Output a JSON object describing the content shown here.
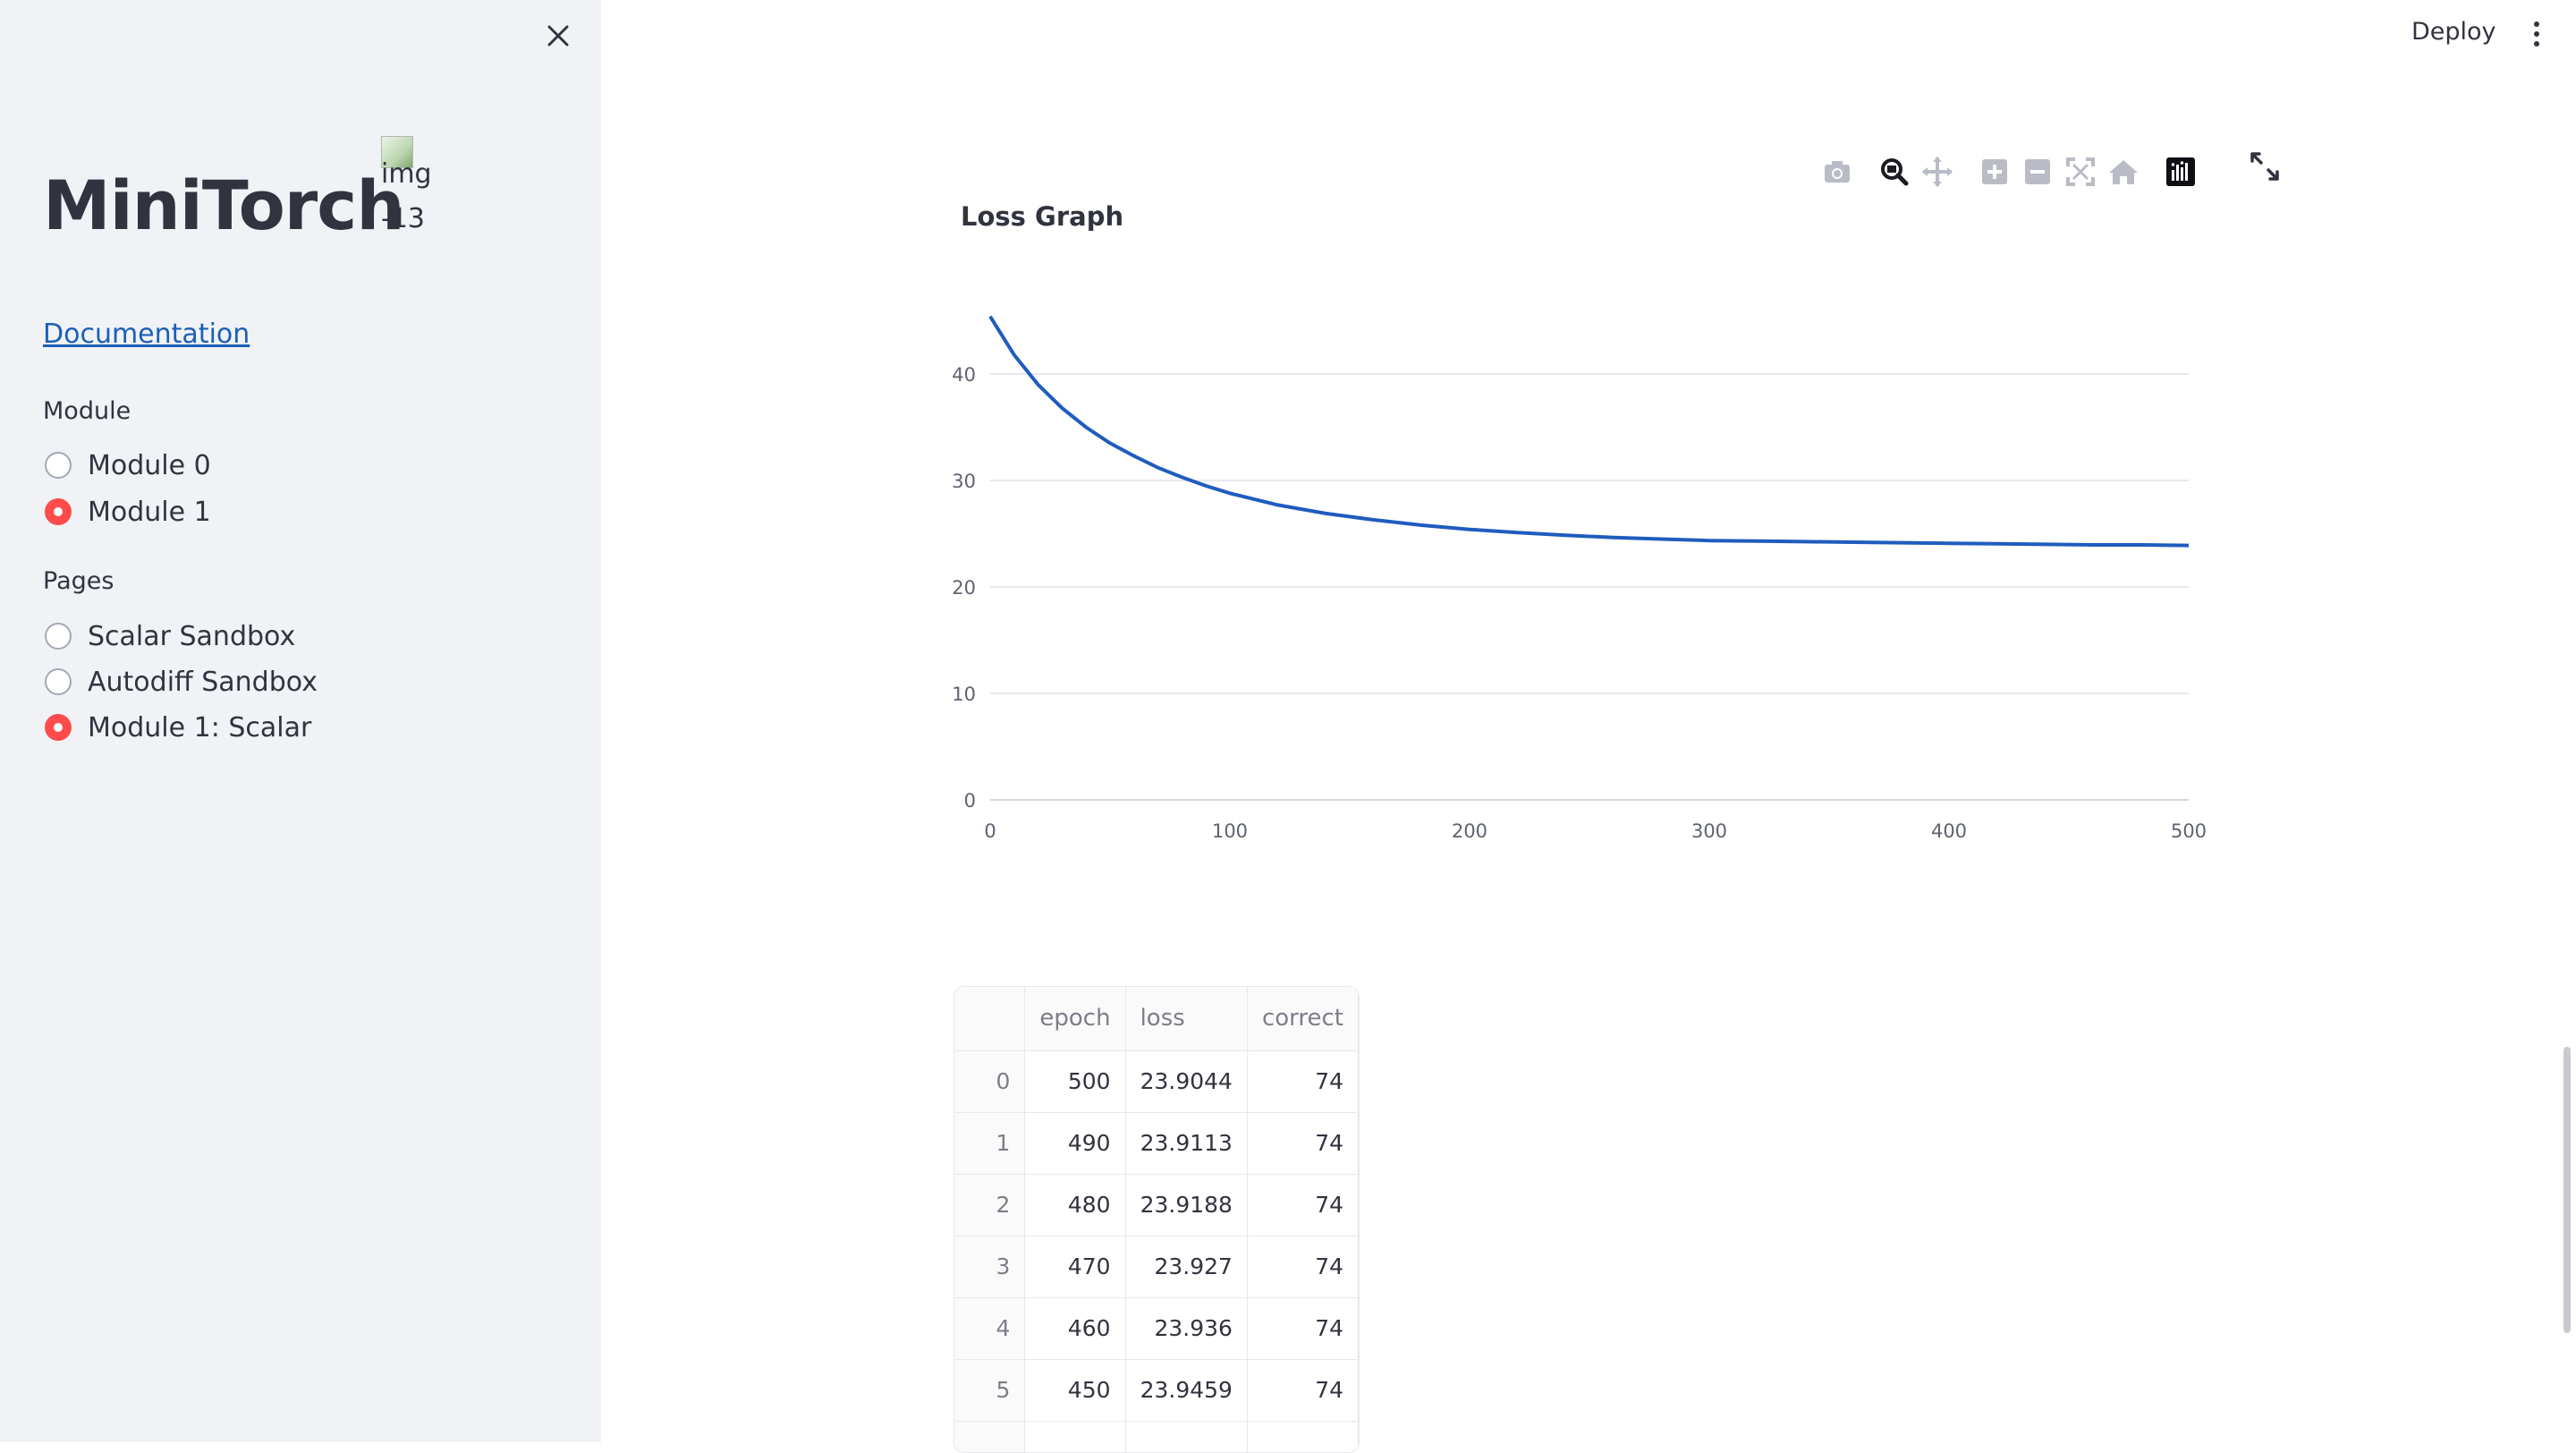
{
  "sidebar": {
    "title": "MiniTorch",
    "broken_image_alt": "img-13",
    "doc_link": "Documentation",
    "module_label": "Module",
    "modules": [
      {
        "label": "Module 0",
        "selected": false
      },
      {
        "label": "Module 1",
        "selected": true
      }
    ],
    "pages_label": "Pages",
    "pages": [
      {
        "label": "Scalar Sandbox",
        "selected": false
      },
      {
        "label": "Autodiff Sandbox",
        "selected": false
      },
      {
        "label": "Module 1: Scalar",
        "selected": true
      }
    ]
  },
  "header": {
    "deploy_label": "Deploy"
  },
  "modebar_icons": [
    "camera-icon",
    "zoom-icon",
    "pan-icon",
    "zoom-in-icon",
    "zoom-out-icon",
    "autoscale-icon",
    "reset-axes-icon",
    "plotly-logo-icon"
  ],
  "chart_data": {
    "type": "line",
    "title": "Loss Graph",
    "xlabel": "",
    "ylabel": "",
    "xlim": [
      0,
      500
    ],
    "ylim": [
      0,
      45
    ],
    "x_ticks": [
      0,
      100,
      200,
      300,
      400,
      500
    ],
    "y_ticks": [
      0,
      10,
      20,
      30,
      40
    ],
    "grid": true,
    "color": "#1f5cbf",
    "series": [
      {
        "x": [
          0,
          10,
          20,
          30,
          40,
          50,
          60,
          70,
          80,
          90,
          100,
          120,
          140,
          160,
          180,
          200,
          220,
          240,
          260,
          280,
          300,
          320,
          340,
          360,
          380,
          400,
          420,
          440,
          460,
          480,
          500
        ],
        "values": [
          45.4,
          41.8,
          39.0,
          36.8,
          35.0,
          33.5,
          32.3,
          31.2,
          30.3,
          29.5,
          28.8,
          27.7,
          26.9,
          26.3,
          25.8,
          25.4,
          25.1,
          24.85,
          24.65,
          24.5,
          24.35,
          24.3,
          24.25,
          24.2,
          24.15,
          24.1,
          24.05,
          24.0,
          23.95,
          23.95,
          23.9
        ]
      }
    ]
  },
  "table": {
    "columns": [
      "",
      "epoch",
      "loss",
      "correct"
    ],
    "rows": [
      [
        "0",
        "500",
        "23.9044",
        "74"
      ],
      [
        "1",
        "490",
        "23.9113",
        "74"
      ],
      [
        "2",
        "480",
        "23.9188",
        "74"
      ],
      [
        "3",
        "470",
        "23.927",
        "74"
      ],
      [
        "4",
        "460",
        "23.936",
        "74"
      ],
      [
        "5",
        "450",
        "23.9459",
        "74"
      ],
      [
        "",
        "",
        "",
        ""
      ]
    ]
  }
}
